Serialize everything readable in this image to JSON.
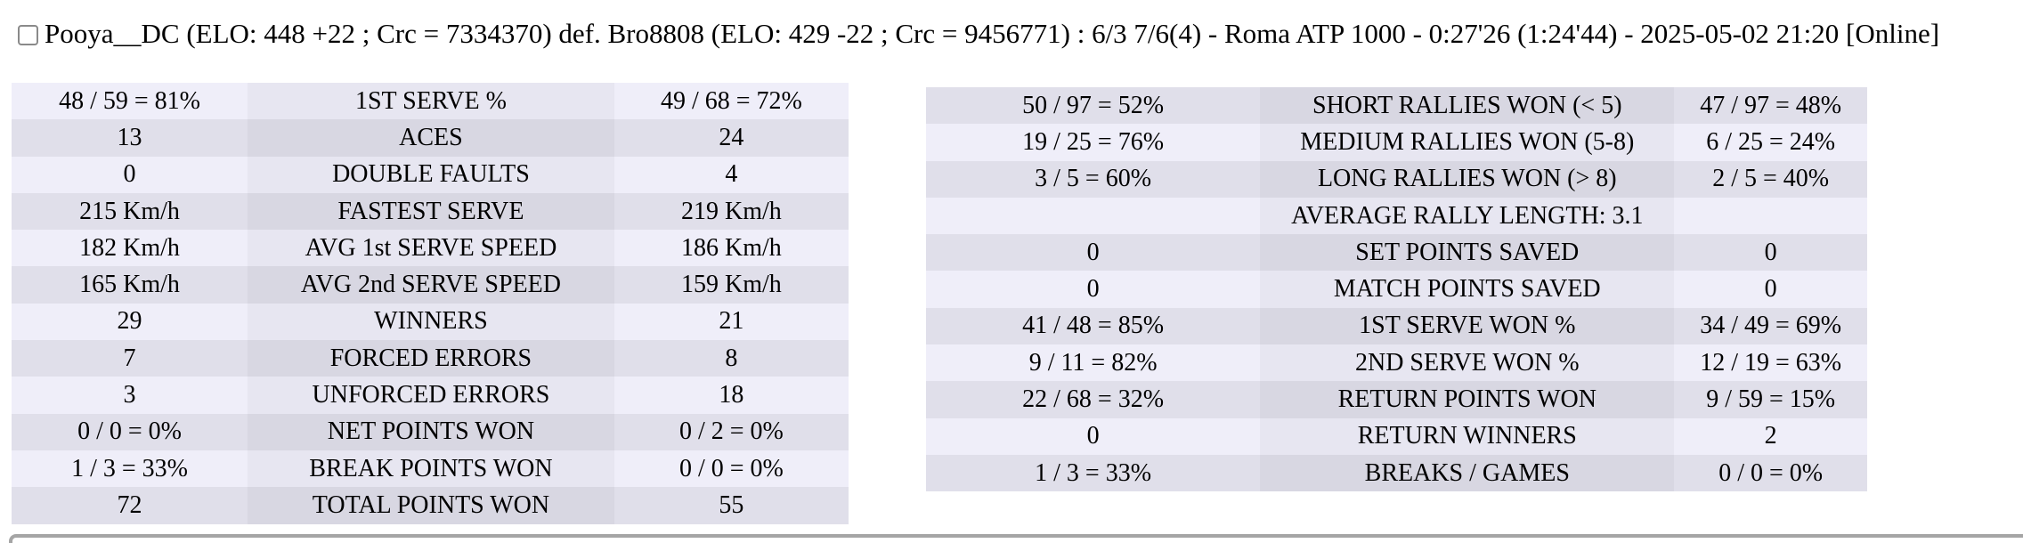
{
  "header": {
    "checkbox_checked": false,
    "title": "Pooya__DC (ELO: 448 +22 ; Crc = 7334370) def. Bro8808 (ELO: 429 -22 ; Crc = 9456771) : 6/3 7/6(4) - Roma ATP 1000 - 0:27'26 (1:24'44) - 2025-05-02 21:20 [Online]"
  },
  "left_table": {
    "rows": [
      {
        "p1": "48 / 59 = 81%",
        "label": "1ST SERVE %",
        "p2": "49 / 68 = 72%"
      },
      {
        "p1": "13",
        "label": "ACES",
        "p2": "24"
      },
      {
        "p1": "0",
        "label": "DOUBLE FAULTS",
        "p2": "4"
      },
      {
        "p1": "215 Km/h",
        "label": "FASTEST SERVE",
        "p2": "219 Km/h"
      },
      {
        "p1": "182 Km/h",
        "label": "AVG 1st SERVE SPEED",
        "p2": "186 Km/h"
      },
      {
        "p1": "165 Km/h",
        "label": "AVG 2nd SERVE SPEED",
        "p2": "159 Km/h"
      },
      {
        "p1": "29",
        "label": "WINNERS",
        "p2": "21"
      },
      {
        "p1": "7",
        "label": "FORCED ERRORS",
        "p2": "8"
      },
      {
        "p1": "3",
        "label": "UNFORCED ERRORS",
        "p2": "18"
      },
      {
        "p1": "0 / 0 = 0%",
        "label": "NET POINTS WON",
        "p2": "0 / 2 = 0%"
      },
      {
        "p1": "1 / 3 = 33%",
        "label": "BREAK POINTS WON",
        "p2": "0 / 0 = 0%"
      },
      {
        "p1": "72",
        "label": "TOTAL POINTS WON",
        "p2": "55"
      }
    ]
  },
  "right_table": {
    "rows": [
      {
        "p1": "50 / 97 = 52%",
        "label": "SHORT RALLIES WON (< 5)",
        "p2": "47 / 97 = 48%"
      },
      {
        "p1": "19 / 25 = 76%",
        "label": "MEDIUM RALLIES WON (5-8)",
        "p2": "6 / 25 = 24%"
      },
      {
        "p1": "3 / 5 = 60%",
        "label": "LONG RALLIES WON (> 8)",
        "p2": "2 / 5 = 40%"
      },
      {
        "p1": "",
        "label": "AVERAGE RALLY LENGTH: 3.1",
        "p2": ""
      },
      {
        "p1": "0",
        "label": "SET POINTS SAVED",
        "p2": "0"
      },
      {
        "p1": "0",
        "label": "MATCH POINTS SAVED",
        "p2": "0"
      },
      {
        "p1": "41 / 48 = 85%",
        "label": "1ST SERVE WON %",
        "p2": "34 / 49 = 69%"
      },
      {
        "p1": "9 / 11 = 82%",
        "label": "2ND SERVE WON %",
        "p2": "12 / 19 = 63%"
      },
      {
        "p1": "22 / 68 = 32%",
        "label": "RETURN POINTS WON",
        "p2": "9 / 59 = 15%"
      },
      {
        "p1": "0",
        "label": "RETURN WINNERS",
        "p2": "2"
      },
      {
        "p1": "1 / 3 = 33%",
        "label": "BREAKS / GAMES",
        "p2": "0 / 0 = 0%"
      }
    ]
  },
  "colors": {
    "light_value": "#efeef9",
    "light_label": "#e7e6f1",
    "dark_value": "#e0dfea",
    "dark_label": "#d8d7e2",
    "divider": "#a5a5a5",
    "text": "#000000"
  }
}
